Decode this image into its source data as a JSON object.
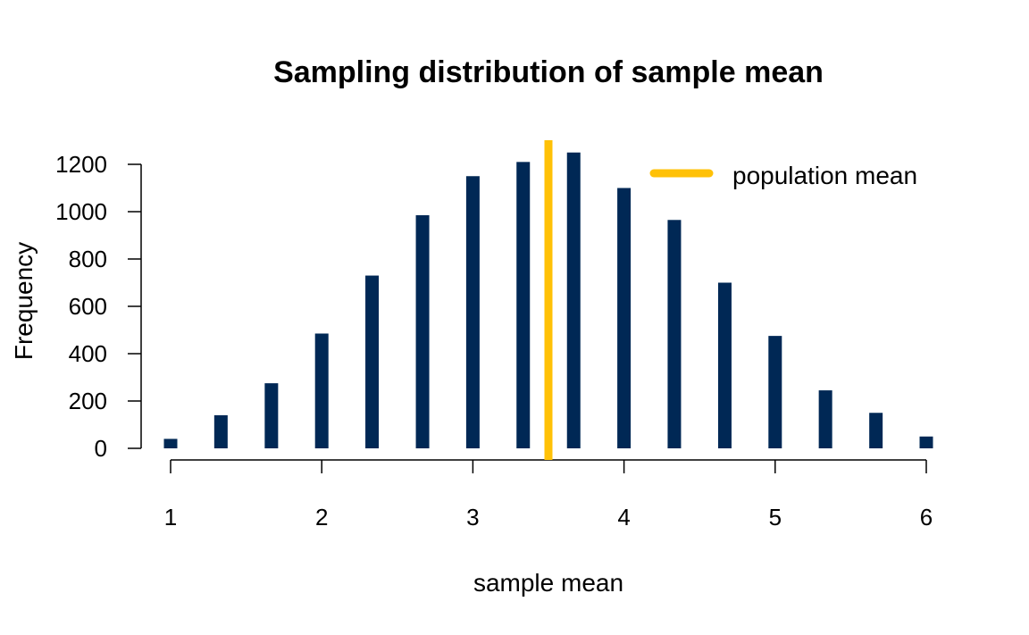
{
  "chart_data": {
    "type": "bar",
    "title": "Sampling distribution of sample mean",
    "xlabel": "sample mean",
    "ylabel": "Frequency",
    "xlim": [
      1,
      6
    ],
    "ylim": [
      0,
      1300
    ],
    "x_ticks": [
      "1",
      "2",
      "3",
      "4",
      "5",
      "6"
    ],
    "y_ticks": [
      "0",
      "200",
      "400",
      "600",
      "800",
      "1000",
      "1200"
    ],
    "bar_color": "#002855",
    "series": [
      {
        "x": [
          1.0,
          1.333,
          1.667,
          2.0,
          2.333,
          2.667,
          3.0,
          3.333,
          3.667,
          4.0,
          4.333,
          4.667,
          5.0,
          5.333,
          5.667,
          6.0
        ],
        "values": [
          40,
          140,
          275,
          485,
          730,
          985,
          1150,
          1210,
          1250,
          1100,
          965,
          700,
          475,
          245,
          150,
          50
        ]
      }
    ],
    "reference_line": {
      "x": 3.5,
      "color": "#FFC107",
      "label": "population mean"
    },
    "legend_position": "top-right",
    "grid": false
  }
}
